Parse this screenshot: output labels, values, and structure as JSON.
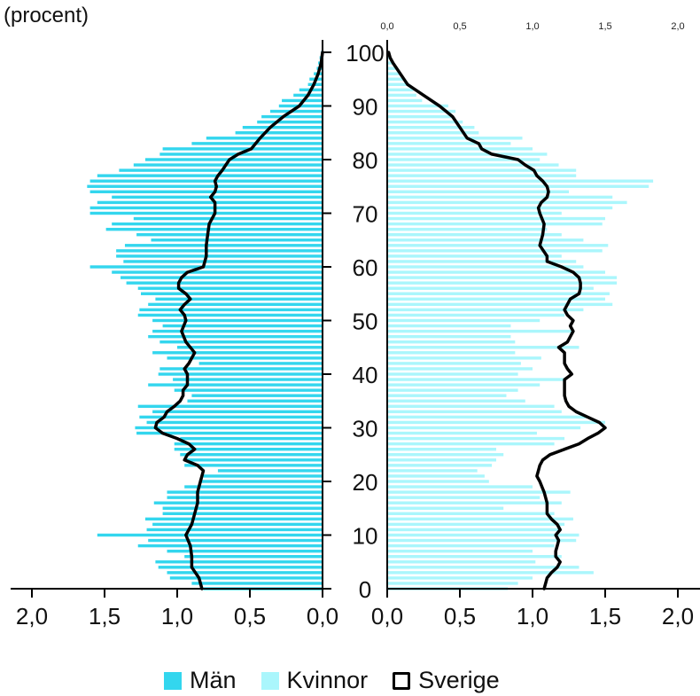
{
  "chart_data": {
    "type": "bar",
    "orientation": "horizontal",
    "unit_label": "(procent)",
    "age_axis": {
      "min": 0,
      "max": 100,
      "ticks": [
        "0",
        "10",
        "20",
        "30",
        "40",
        "50",
        "60",
        "70",
        "80",
        "90",
        "100"
      ]
    },
    "value_axis": {
      "min": 0,
      "max": 2.0,
      "ticks": [
        "0,0",
        "0,5",
        "1,0",
        "1,5",
        "2,0"
      ]
    },
    "legend_position": "bottom",
    "legend": {
      "men": "Män",
      "women": "Kvinnor",
      "sverige": "Sverige"
    },
    "colors": {
      "men": "#33d6ee",
      "women": "#aaf6fc",
      "sverige": "#000000"
    },
    "series": [
      {
        "name": "Män",
        "side": "left",
        "values": [
          0.82,
          0.9,
          1.05,
          1.07,
          1.13,
          1.15,
          0.95,
          1.07,
          1.27,
          1.2,
          1.55,
          1.21,
          1.17,
          1.22,
          1.1,
          1.1,
          1.16,
          1.07,
          1.07,
          0.95,
          0.85,
          0.82,
          0.72,
          0.95,
          0.95,
          0.98,
          1.02,
          1.02,
          0.98,
          1.28,
          1.29,
          1.21,
          1.26,
          1.17,
          1.27,
          0.93,
          0.9,
          1.02,
          1.2,
          1.03,
          1.13,
          1.12,
          0.85,
          1.07,
          1.17,
          1.0,
          1.12,
          1.2,
          1.17,
          1.1,
          1.17,
          1.27,
          1.26,
          1.2,
          1.15,
          1.25,
          1.27,
          1.35,
          1.39,
          1.45,
          1.6,
          1.37,
          1.42,
          1.42,
          1.36,
          1.18,
          1.28,
          1.49,
          1.45,
          1.3,
          1.6,
          1.6,
          1.55,
          1.45,
          1.6,
          1.62,
          1.6,
          1.55,
          1.4,
          1.3,
          1.22,
          1.12,
          1.1,
          0.9,
          0.8,
          0.6,
          0.55,
          0.45,
          0.42,
          0.36,
          0.3,
          0.28,
          0.2,
          0.16,
          0.1,
          0.09,
          0.06,
          0.04,
          0.03,
          0.02,
          0.01
        ]
      },
      {
        "name": "Kvinnor",
        "side": "right",
        "values": [
          0.83,
          0.9,
          1.0,
          1.42,
          1.32,
          1.02,
          1.2,
          1.0,
          1.15,
          1.3,
          1.32,
          1.2,
          1.22,
          1.28,
          1.15,
          0.8,
          1.2,
          1.05,
          1.26,
          1.0,
          0.7,
          0.67,
          0.62,
          0.72,
          0.75,
          0.8,
          0.75,
          1.15,
          1.22,
          1.03,
          1.33,
          1.5,
          1.37,
          1.2,
          1.15,
          0.95,
          0.82,
          0.9,
          1.05,
          1.22,
          0.9,
          1.0,
          0.92,
          1.06,
          0.88,
          1.32,
          0.88,
          0.85,
          1.27,
          0.85,
          1.05,
          1.22,
          1.35,
          1.55,
          1.5,
          1.53,
          1.42,
          1.58,
          1.58,
          1.5,
          1.35,
          1.3,
          1.2,
          1.48,
          1.52,
          1.35,
          1.2,
          1.1,
          1.48,
          1.5,
          1.2,
          1.55,
          1.65,
          1.55,
          1.25,
          1.8,
          1.83,
          1.3,
          1.3,
          1.18,
          1.05,
          1.1,
          1.0,
          0.85,
          0.93,
          0.63,
          0.6,
          0.52,
          0.45,
          0.47,
          0.42,
          0.24,
          0.2,
          0.18,
          0.15,
          0.12,
          0.09,
          0.06,
          0.04,
          0.02,
          0.01
        ]
      },
      {
        "name": "Sverige",
        "side": "both",
        "type": "line",
        "points_left": [
          [
            0,
            0.83
          ],
          [
            2,
            0.85
          ],
          [
            4,
            0.9
          ],
          [
            6,
            0.9
          ],
          [
            8,
            0.91
          ],
          [
            10,
            0.94
          ],
          [
            12,
            0.9
          ],
          [
            14,
            0.88
          ],
          [
            16,
            0.86
          ],
          [
            18,
            0.86
          ],
          [
            20,
            0.84
          ],
          [
            22,
            0.82
          ],
          [
            23,
            0.86
          ],
          [
            24,
            0.95
          ],
          [
            25,
            0.93
          ],
          [
            26,
            0.88
          ],
          [
            27,
            0.92
          ],
          [
            28,
            1.0
          ],
          [
            29,
            1.1
          ],
          [
            30,
            1.15
          ],
          [
            31,
            1.14
          ],
          [
            32,
            1.09
          ],
          [
            33,
            1.07
          ],
          [
            34,
            1.02
          ],
          [
            35,
            0.98
          ],
          [
            36,
            0.96
          ],
          [
            37,
            0.96
          ],
          [
            38,
            0.93
          ],
          [
            40,
            0.93
          ],
          [
            41,
            0.95
          ],
          [
            42,
            0.92
          ],
          [
            44,
            0.88
          ],
          [
            46,
            0.94
          ],
          [
            48,
            0.97
          ],
          [
            50,
            0.94
          ],
          [
            51,
            0.95
          ],
          [
            52,
            0.98
          ],
          [
            53,
            0.95
          ],
          [
            54,
            0.91
          ],
          [
            55,
            0.94
          ],
          [
            56,
            0.99
          ],
          [
            57,
            0.99
          ],
          [
            58,
            0.97
          ],
          [
            59,
            0.93
          ],
          [
            60,
            0.82
          ],
          [
            62,
            0.8
          ],
          [
            64,
            0.8
          ],
          [
            66,
            0.79
          ],
          [
            68,
            0.78
          ],
          [
            70,
            0.74
          ],
          [
            72,
            0.74
          ],
          [
            73,
            0.77
          ],
          [
            74,
            0.74
          ],
          [
            75,
            0.73
          ],
          [
            76,
            0.74
          ],
          [
            77,
            0.72
          ],
          [
            78,
            0.69
          ],
          [
            80,
            0.64
          ],
          [
            81,
            0.58
          ],
          [
            82,
            0.49
          ],
          [
            84,
            0.43
          ],
          [
            86,
            0.36
          ],
          [
            88,
            0.27
          ],
          [
            90,
            0.16
          ],
          [
            92,
            0.1
          ],
          [
            94,
            0.06
          ],
          [
            96,
            0.03
          ],
          [
            98,
            0.01
          ],
          [
            100,
            0.0
          ]
        ],
        "points_right": [
          [
            0,
            1.08
          ],
          [
            2,
            1.1
          ],
          [
            3,
            1.13
          ],
          [
            4,
            1.17
          ],
          [
            5,
            1.19
          ],
          [
            6,
            1.16
          ],
          [
            7,
            1.16
          ],
          [
            8,
            1.17
          ],
          [
            9,
            1.18
          ],
          [
            10,
            1.16
          ],
          [
            11,
            1.19
          ],
          [
            12,
            1.17
          ],
          [
            13,
            1.13
          ],
          [
            14,
            1.1
          ],
          [
            16,
            1.1
          ],
          [
            18,
            1.08
          ],
          [
            20,
            1.05
          ],
          [
            21,
            1.03
          ],
          [
            22,
            1.04
          ],
          [
            23,
            1.05
          ],
          [
            24,
            1.07
          ],
          [
            25,
            1.12
          ],
          [
            26,
            1.22
          ],
          [
            27,
            1.32
          ],
          [
            28,
            1.38
          ],
          [
            29,
            1.45
          ],
          [
            30,
            1.5
          ],
          [
            31,
            1.46
          ],
          [
            32,
            1.38
          ],
          [
            33,
            1.3
          ],
          [
            34,
            1.25
          ],
          [
            35,
            1.23
          ],
          [
            36,
            1.22
          ],
          [
            37,
            1.22
          ],
          [
            38,
            1.22
          ],
          [
            39,
            1.22
          ],
          [
            40,
            1.27
          ],
          [
            41,
            1.24
          ],
          [
            42,
            1.22
          ],
          [
            44,
            1.22
          ],
          [
            45,
            1.18
          ],
          [
            46,
            1.24
          ],
          [
            48,
            1.28
          ],
          [
            49,
            1.26
          ],
          [
            50,
            1.28
          ],
          [
            51,
            1.24
          ],
          [
            52,
            1.22
          ],
          [
            54,
            1.26
          ],
          [
            55,
            1.32
          ],
          [
            56,
            1.33
          ],
          [
            57,
            1.33
          ],
          [
            58,
            1.32
          ],
          [
            59,
            1.28
          ],
          [
            60,
            1.2
          ],
          [
            61,
            1.1
          ],
          [
            62,
            1.1
          ],
          [
            64,
            1.05
          ],
          [
            66,
            1.07
          ],
          [
            68,
            1.08
          ],
          [
            70,
            1.05
          ],
          [
            71,
            1.04
          ],
          [
            72,
            1.06
          ],
          [
            73,
            1.1
          ],
          [
            74,
            1.11
          ],
          [
            75,
            1.1
          ],
          [
            76,
            1.07
          ],
          [
            77,
            1.03
          ],
          [
            78,
            1.01
          ],
          [
            79,
            0.95
          ],
          [
            80,
            0.9
          ],
          [
            81,
            0.72
          ],
          [
            82,
            0.65
          ],
          [
            83,
            0.63
          ],
          [
            84,
            0.55
          ],
          [
            86,
            0.5
          ],
          [
            88,
            0.45
          ],
          [
            90,
            0.36
          ],
          [
            92,
            0.25
          ],
          [
            94,
            0.14
          ],
          [
            96,
            0.09
          ],
          [
            98,
            0.04
          ],
          [
            99,
            0.02
          ],
          [
            100,
            0.01
          ]
        ]
      }
    ]
  }
}
